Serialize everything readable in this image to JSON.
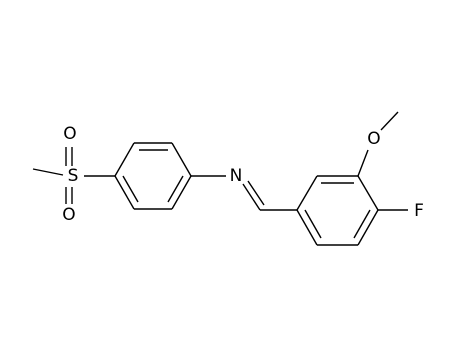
{
  "atoms": [
    {
      "label": "S"
    },
    {
      "label": "O"
    },
    {
      "label": "O"
    },
    {
      "label": "N"
    },
    {
      "label": "O"
    },
    {
      "label": "F"
    }
  ]
}
